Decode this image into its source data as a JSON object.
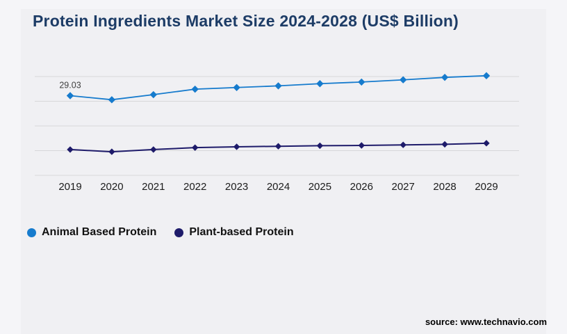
{
  "page": {
    "title": "Protein Ingredients Market Size 2024-2028 (US$ Billion)",
    "source": "source: www.technavio.com"
  },
  "colors": {
    "title_text": "#1d3c66",
    "widget_background": "#f0f0f3",
    "page_background": "#f5f5f8",
    "gridline": "#d7d7d9",
    "tick_label": "#1c1c1c",
    "data_label": "#3f3f3f",
    "animal_series": "#167bcd",
    "plant_series": "#1e1b6a"
  },
  "chart_data": {
    "type": "line",
    "title": "Protein Ingredients Market Size 2024-2028 (US$ Billion)",
    "categories": [
      "2019",
      "2020",
      "2021",
      "2022",
      "2023",
      "2024",
      "2025",
      "2026",
      "2027",
      "2028",
      "2029"
    ],
    "series": [
      {
        "name": "Animal Based Protein",
        "color": "#167bcd",
        "marker": "diamond",
        "values": [
          29.03,
          27.55,
          29.4,
          31.4,
          32.0,
          32.6,
          33.4,
          34.0,
          34.8,
          35.7,
          36.3
        ]
      },
      {
        "name": "Plant-based Protein",
        "color": "#1e1b6a",
        "marker": "diamond",
        "values": [
          9.4,
          8.6,
          9.4,
          10.1,
          10.4,
          10.6,
          10.8,
          10.9,
          11.1,
          11.3,
          11.7
        ]
      }
    ],
    "annotations": [
      {
        "series": 0,
        "index": 0,
        "text": "29.03"
      }
    ],
    "xlabel": "",
    "ylabel": "",
    "ylim": [
      0,
      36
    ],
    "y_gridline_step": 9,
    "grid": "horizontal",
    "y_axis_labels": "hidden",
    "legend_position": "bottom-left"
  }
}
